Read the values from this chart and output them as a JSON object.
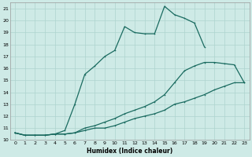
{
  "xlabel": "Humidex (Indice chaleur)",
  "background_color": "#ceeae6",
  "grid_color": "#add4cf",
  "line_color": "#1a6b60",
  "xlim": [
    -0.5,
    23.5
  ],
  "ylim": [
    10,
    21.5
  ],
  "xticks": [
    0,
    1,
    2,
    3,
    4,
    5,
    6,
    7,
    8,
    9,
    10,
    11,
    12,
    13,
    14,
    15,
    16,
    17,
    18,
    19,
    20,
    21,
    22,
    23
  ],
  "yticks": [
    10,
    11,
    12,
    13,
    14,
    15,
    16,
    17,
    18,
    19,
    20,
    21
  ],
  "line1_x": [
    0,
    1,
    2,
    3,
    4,
    5,
    6,
    7,
    8,
    9,
    10,
    11,
    12,
    13,
    14,
    15,
    16,
    17,
    18,
    19
  ],
  "line1_y": [
    10.6,
    10.4,
    10.4,
    10.4,
    10.5,
    10.8,
    13.0,
    15.5,
    16.2,
    17.0,
    17.5,
    19.5,
    19.0,
    18.9,
    18.9,
    21.2,
    20.5,
    20.2,
    19.8,
    17.8
  ],
  "line2_x": [
    0,
    1,
    2,
    3,
    4,
    5,
    6,
    7,
    8,
    9,
    10,
    11,
    12,
    13,
    14,
    15,
    16,
    17,
    18,
    19,
    20,
    21,
    22,
    23
  ],
  "line2_y": [
    10.6,
    10.4,
    10.4,
    10.4,
    10.5,
    10.5,
    10.6,
    11.0,
    11.2,
    11.5,
    11.8,
    12.2,
    12.5,
    12.8,
    13.2,
    13.8,
    14.8,
    15.8,
    16.2,
    16.5,
    16.5,
    16.4,
    16.3,
    14.8
  ],
  "line3_x": [
    0,
    1,
    2,
    3,
    4,
    5,
    6,
    7,
    8,
    9,
    10,
    11,
    12,
    13,
    14,
    15,
    16,
    17,
    18,
    19,
    20,
    21,
    22,
    23
  ],
  "line3_y": [
    10.6,
    10.4,
    10.4,
    10.4,
    10.5,
    10.5,
    10.6,
    10.8,
    11.0,
    11.0,
    11.2,
    11.5,
    11.8,
    12.0,
    12.2,
    12.5,
    13.0,
    13.2,
    13.5,
    13.8,
    14.2,
    14.5,
    14.8,
    14.8
  ]
}
